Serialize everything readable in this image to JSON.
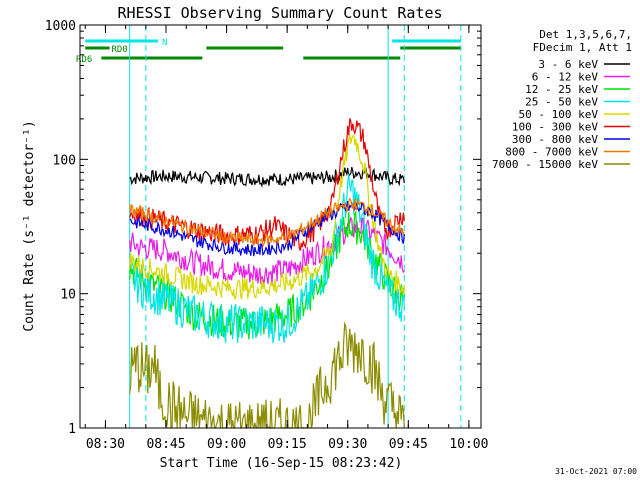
{
  "chart_data": {
    "type": "line",
    "title": "RHESSI Observing Summary Count Rates",
    "xlabel": "Start Time (16-Sep-15 08:23:42)",
    "ylabel": "Count Rate (s⁻¹ detector⁻¹)",
    "y_scale": "log",
    "ylim": [
      1,
      1000
    ],
    "xlim": [
      "08:23:42",
      "10:03:00"
    ],
    "x_ticks": [
      "08:30",
      "08:45",
      "09:00",
      "09:15",
      "09:30",
      "09:45",
      "10:00"
    ],
    "y_ticks": [
      "1",
      "10",
      "100",
      "1000"
    ],
    "footer": "31-Oct-2021 07:00",
    "legend_header": [
      "Det 1,3,5,6,7,",
      "FDecim 1, Att 1"
    ],
    "legend_position": "right",
    "vertical_lines": {
      "solid": [
        "08:36",
        "09:40"
      ],
      "dashed": [
        "08:40",
        "09:44",
        "09:58"
      ]
    },
    "flags": [
      {
        "label": "N",
        "color": "#00e5e5",
        "segments": [
          [
            "08:25",
            "08:43"
          ],
          [
            "09:41",
            "09:58"
          ]
        ]
      },
      {
        "label": "RD0",
        "color": "#008800",
        "segments": [
          [
            "08:25",
            "08:31"
          ],
          [
            "08:55",
            "09:14"
          ],
          [
            "09:43",
            "09:58"
          ]
        ]
      },
      {
        "label": "RD6",
        "color": "#008800",
        "segments": [
          [
            "08:29",
            "08:54"
          ],
          [
            "09:19",
            "09:43"
          ]
        ]
      }
    ],
    "series": [
      {
        "name": "3 - 6 keV",
        "color": "#000000",
        "x": [
          "08:36",
          "08:45",
          "09:00",
          "09:15",
          "09:22",
          "09:26",
          "09:30",
          "09:33",
          "09:36",
          "09:40",
          "09:44"
        ],
        "y": [
          72,
          75,
          72,
          71,
          72,
          74,
          80,
          80,
          78,
          72,
          70
        ]
      },
      {
        "name": "6 - 12 keV",
        "color": "#e81ee8",
        "x": [
          "08:36",
          "08:39",
          "08:45",
          "08:52",
          "09:00",
          "09:08",
          "09:15",
          "09:22",
          "09:26",
          "09:30",
          "09:33",
          "09:36",
          "09:40",
          "09:44"
        ],
        "y": [
          24,
          22,
          21,
          17,
          15,
          14,
          15,
          20,
          24,
          30,
          31,
          28,
          22,
          17
        ]
      },
      {
        "name": "12 - 25 keV",
        "color": "#00e200",
        "x": [
          "08:36",
          "08:39",
          "08:45",
          "08:52",
          "09:00",
          "09:08",
          "09:15",
          "09:20",
          "09:25",
          "09:28",
          "09:30",
          "09:33",
          "09:36",
          "09:40",
          "09:44"
        ],
        "y": [
          16,
          13,
          10,
          7,
          6,
          6,
          7,
          9,
          15,
          26,
          33,
          30,
          20,
          12,
          9
        ]
      },
      {
        "name": "25 - 50 keV",
        "color": "#00e5e5",
        "x": [
          "08:36",
          "08:39",
          "08:45",
          "08:52",
          "09:00",
          "09:08",
          "09:15",
          "09:20",
          "09:25",
          "09:28",
          "09:30",
          "09:31",
          "09:33",
          "09:36",
          "09:40",
          "09:44"
        ],
        "y": [
          14,
          11,
          9,
          7,
          6,
          6,
          6,
          9,
          16,
          32,
          55,
          60,
          40,
          18,
          10,
          8
        ]
      },
      {
        "name": "50 - 100 keV",
        "color": "#d8d800",
        "x": [
          "08:36",
          "08:39",
          "08:45",
          "08:52",
          "09:00",
          "09:08",
          "09:15",
          "09:22",
          "09:26",
          "09:28",
          "09:30",
          "09:31",
          "09:32",
          "09:34",
          "09:36",
          "09:38",
          "09:40",
          "09:44"
        ],
        "y": [
          18,
          16,
          14,
          12,
          11,
          11,
          12,
          15,
          22,
          60,
          120,
          150,
          140,
          90,
          40,
          20,
          14,
          11
        ]
      },
      {
        "name": "100 - 300 keV",
        "color": "#e60000",
        "x": [
          "08:36",
          "08:39",
          "08:45",
          "08:52",
          "09:00",
          "09:08",
          "09:12",
          "09:18",
          "09:22",
          "09:26",
          "09:28",
          "09:30",
          "09:31",
          "09:32",
          "09:34",
          "09:36",
          "09:38",
          "09:40",
          "09:44"
        ],
        "y": [
          40,
          38,
          34,
          30,
          27,
          28,
          32,
          24,
          30,
          45,
          90,
          160,
          190,
          180,
          140,
          70,
          35,
          30,
          40
        ]
      },
      {
        "name": "300 - 800 keV",
        "color": "#0000e0",
        "x": [
          "08:36",
          "08:39",
          "08:45",
          "08:52",
          "09:00",
          "09:08",
          "09:15",
          "09:20",
          "09:25",
          "09:30",
          "09:33",
          "09:36",
          "09:40",
          "09:44"
        ],
        "y": [
          35,
          33,
          30,
          25,
          22,
          21,
          23,
          30,
          38,
          44,
          44,
          40,
          32,
          26
        ]
      },
      {
        "name": "800 - 7000 keV",
        "color": "#f07800",
        "x": [
          "08:36",
          "08:39",
          "08:45",
          "08:52",
          "09:00",
          "09:08",
          "09:15",
          "09:20",
          "09:25",
          "09:30",
          "09:33",
          "09:36",
          "09:40",
          "09:44"
        ],
        "y": [
          42,
          40,
          35,
          30,
          26,
          25,
          26,
          32,
          40,
          46,
          46,
          42,
          34,
          28
        ]
      },
      {
        "name": "7000 - 15000 keV",
        "color": "#8c8c00",
        "x": [
          "08:36",
          "08:38",
          "08:40",
          "08:42",
          "08:43",
          "08:45",
          "08:50",
          "09:00",
          "09:10",
          "09:20",
          "09:24",
          "09:27",
          "09:30",
          "09:33",
          "09:36",
          "09:38",
          "09:40",
          "09:42",
          "09:44"
        ],
        "y": [
          2.5,
          3,
          2.5,
          3,
          2,
          1.5,
          1.2,
          1,
          1,
          1,
          2,
          3,
          4,
          4,
          3,
          2,
          1.5,
          1.3,
          1
        ]
      }
    ]
  }
}
